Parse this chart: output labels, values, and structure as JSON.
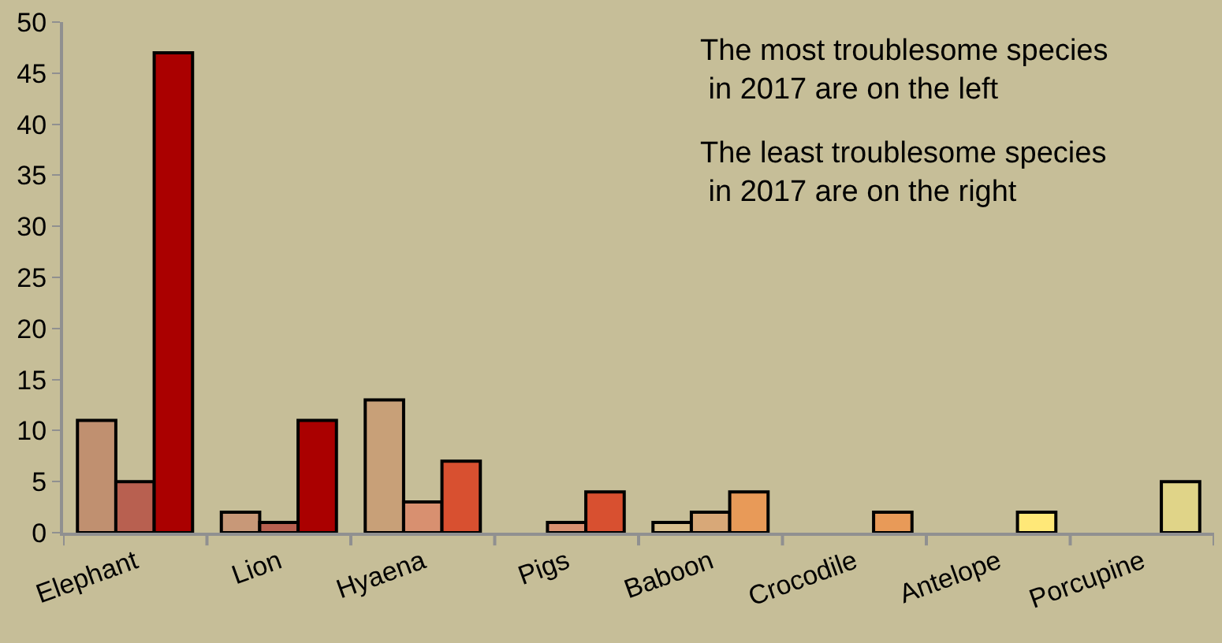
{
  "chart_data": {
    "type": "bar",
    "categories": [
      "Elephant",
      "Lion",
      "Hyaena",
      "Pigs",
      "Baboon",
      "Crocodile",
      "Antelope",
      "Porcupine"
    ],
    "series": [
      {
        "values": [
          11,
          2,
          13,
          null,
          1,
          null,
          null,
          null
        ],
        "colors": [
          "#c09070",
          "#c89878",
          "#c8a078",
          "#c8a078",
          "#d8c090",
          "#d8c090",
          "#d8c090",
          "#d8c090"
        ]
      },
      {
        "values": [
          5,
          1,
          3,
          1,
          2,
          null,
          null,
          null
        ],
        "colors": [
          "#b86050",
          "#b86050",
          "#d89070",
          "#d89070",
          "#d8a878",
          "#d8a878",
          "#d8a878",
          "#d8a878"
        ]
      },
      {
        "values": [
          47,
          11,
          7,
          4,
          4,
          2,
          2,
          5
        ],
        "colors": [
          "#aa0000",
          "#aa0000",
          "#d85030",
          "#d85030",
          "#e89a58",
          "#e89a58",
          "#ffe878",
          "#e0d488"
        ]
      }
    ],
    "ylim": [
      0,
      50
    ],
    "yticks": [
      0,
      5,
      10,
      15,
      20,
      25,
      30,
      35,
      40,
      45,
      50
    ],
    "grid": false,
    "annotations": [
      "The most troublesome species\n in 2017 are on the left",
      "The least troublesome species\n in 2017 are on the right"
    ]
  }
}
